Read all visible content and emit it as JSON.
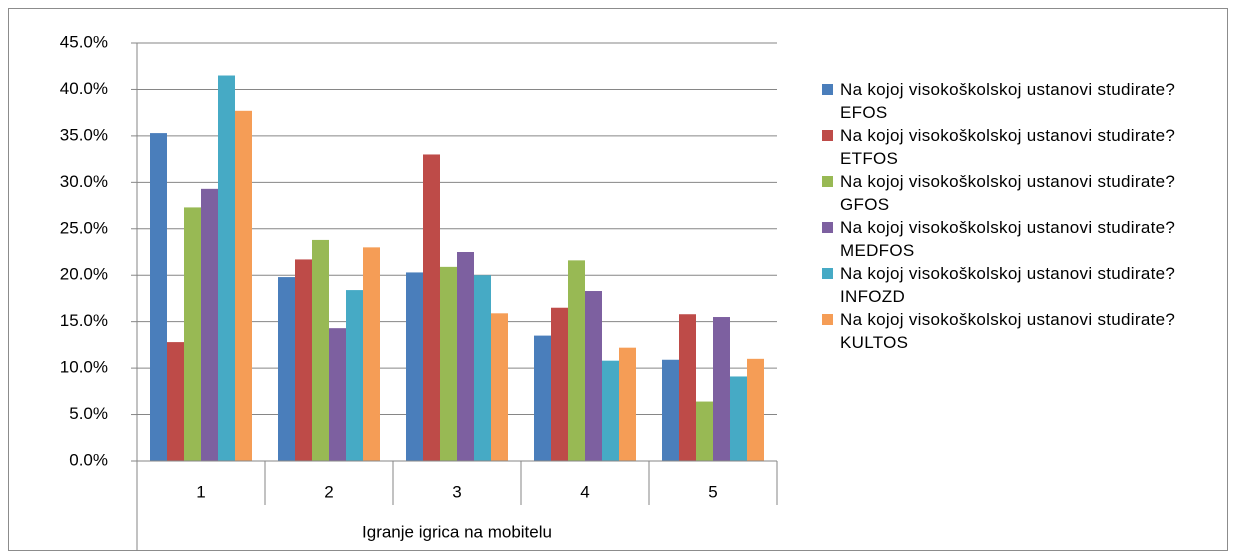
{
  "chart_data": {
    "type": "bar",
    "xlabel": "Igranje igrica na mobitelu",
    "categories": [
      "1",
      "2",
      "3",
      "4",
      "5"
    ],
    "series": [
      {
        "name": "Na kojoj visokoškolskoj ustanovi studirate? EFOS",
        "color": "#4a7ebb",
        "values": [
          35.3,
          19.8,
          20.3,
          13.5,
          10.9
        ]
      },
      {
        "name": "Na kojoj visokoškolskoj ustanovi studirate? ETFOS",
        "color": "#be4b48",
        "values": [
          12.8,
          21.7,
          33.0,
          16.5,
          15.8
        ]
      },
      {
        "name": "Na kojoj visokoškolskoj ustanovi studirate? GFOS",
        "color": "#98b954",
        "values": [
          27.3,
          23.8,
          20.9,
          21.6,
          6.4
        ]
      },
      {
        "name": "Na kojoj visokoškolskoj ustanovi studirate? MEDFOS",
        "color": "#7d60a0",
        "values": [
          29.3,
          14.3,
          22.5,
          18.3,
          15.5
        ]
      },
      {
        "name": "Na kojoj visokoškolskoj ustanovi studirate? INFOZD",
        "color": "#46aac5",
        "values": [
          41.5,
          18.4,
          20.0,
          10.8,
          9.1
        ]
      },
      {
        "name": "Na kojoj visokoškolskoj ustanovi studirate? KULTOS",
        "color": "#f59d56",
        "values": [
          37.7,
          23.0,
          15.9,
          12.2,
          11.0
        ]
      }
    ],
    "ylim": [
      0,
      45
    ],
    "yticks": [
      {
        "value": 0,
        "label": "0.0%"
      },
      {
        "value": 5,
        "label": "5.0%"
      },
      {
        "value": 10,
        "label": "10.0%"
      },
      {
        "value": 15,
        "label": "15.0%"
      },
      {
        "value": 20,
        "label": "20.0%"
      },
      {
        "value": 25,
        "label": "25.0%"
      },
      {
        "value": 30,
        "label": "30.0%"
      },
      {
        "value": 35,
        "label": "35.0%"
      },
      {
        "value": 40,
        "label": "40.0%"
      },
      {
        "value": 45,
        "label": "45.0%"
      }
    ],
    "grid": true,
    "legend": "right"
  }
}
